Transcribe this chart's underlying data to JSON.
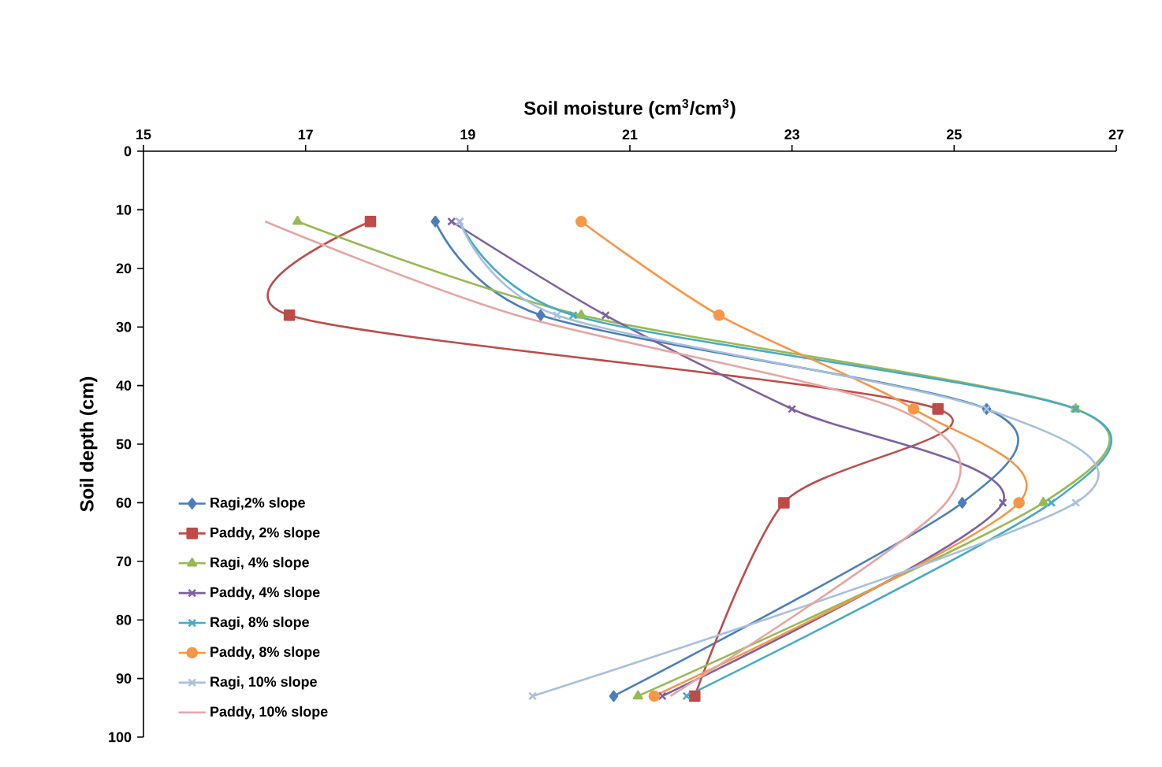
{
  "chart_data": {
    "type": "line",
    "xlabel": "Soil moisture (cm$^{3}$/cm$^{3}$)",
    "ylabel": "Soil depth (cm)",
    "xlim": [
      15,
      27
    ],
    "xticks": [
      15,
      17,
      19,
      21,
      23,
      25,
      27
    ],
    "ylim": [
      100,
      0
    ],
    "yticks": [
      0,
      10,
      20,
      30,
      40,
      50,
      60,
      70,
      80,
      90,
      100
    ],
    "legend": "bottom left",
    "grid": false,
    "series": [
      {
        "name": "Ragi,2% slope",
        "color": "#4a7ebb",
        "marker": "diamond",
        "x": [
          18.6,
          19.9,
          25.4,
          25.1,
          20.8
        ],
        "values": [
          12,
          28,
          44,
          60,
          93
        ]
      },
      {
        "name": "Paddy, 2% slope",
        "color": "#be4b48",
        "marker": "square",
        "x": [
          17.8,
          16.8,
          24.8,
          22.9,
          21.8
        ],
        "values": [
          12,
          28,
          44,
          60,
          93
        ]
      },
      {
        "name": "Ragi, 4% slope",
        "color": "#98b954",
        "marker": "triangle",
        "x": [
          16.9,
          20.4,
          26.5,
          26.1,
          21.1
        ],
        "values": [
          12,
          28,
          44,
          60,
          93
        ]
      },
      {
        "name": "Paddy, 4% slope",
        "color": "#7d60a0",
        "marker": "cross",
        "x": [
          18.8,
          20.7,
          23.0,
          25.6,
          21.4
        ],
        "values": [
          12,
          28,
          44,
          60,
          93
        ]
      },
      {
        "name": "Ragi, 8% slope",
        "color": "#46aac5",
        "marker": "cross",
        "x": [
          18.9,
          20.3,
          26.5,
          26.2,
          21.7
        ],
        "values": [
          12,
          28,
          44,
          60,
          93
        ]
      },
      {
        "name": "Paddy, 8% slope",
        "color": "#f79646",
        "marker": "circle",
        "x": [
          20.4,
          22.1,
          24.5,
          25.8,
          21.3
        ],
        "values": [
          12,
          28,
          44,
          60,
          93
        ]
      },
      {
        "name": "Ragi, 10% slope",
        "color": "#a8c0dd",
        "marker": "cross",
        "x": [
          18.9,
          20.1,
          25.4,
          26.5,
          19.8
        ],
        "values": [
          12,
          28,
          44,
          60,
          93
        ]
      },
      {
        "name": "Paddy, 10% slope",
        "color": "#e6a5a4",
        "marker": "none",
        "x": [
          16.5,
          19.6,
          24.3,
          24.9,
          21.5
        ],
        "values": [
          12,
          28,
          44,
          60,
          93
        ]
      }
    ]
  }
}
